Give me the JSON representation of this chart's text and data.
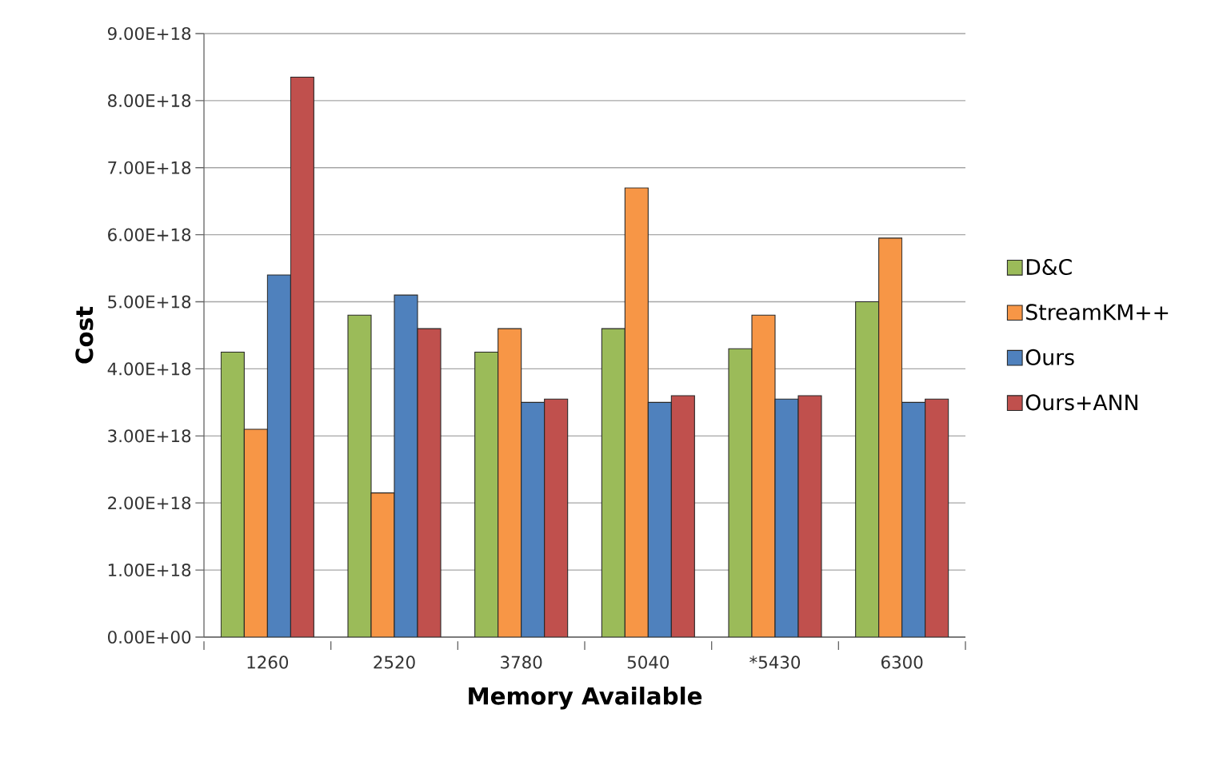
{
  "chart_data": {
    "type": "bar",
    "xlabel": "Memory Available",
    "ylabel": "Cost",
    "categories": [
      "1260",
      "2520",
      "3780",
      "5040",
      "*5430",
      "6300"
    ],
    "series": [
      {
        "name": "D&C",
        "color": "#9bbb59",
        "values": [
          4.25e+18,
          4.8e+18,
          4.25e+18,
          4.6e+18,
          4.3e+18,
          5e+18
        ]
      },
      {
        "name": "StreamKM++",
        "color": "#f79646",
        "values": [
          3.1e+18,
          2.15e+18,
          4.6e+18,
          6.7e+18,
          4.8e+18,
          5.95e+18
        ]
      },
      {
        "name": "Ours",
        "color": "#4f81bd",
        "values": [
          5.4e+18,
          5.1e+18,
          3.5e+18,
          3.5e+18,
          3.55e+18,
          3.5e+18
        ]
      },
      {
        "name": "Ours+ANN",
        "color": "#c0504d",
        "values": [
          8.35e+18,
          4.6e+18,
          3.55e+18,
          3.6e+18,
          3.6e+18,
          3.55e+18
        ]
      }
    ],
    "ylim": [
      0,
      9e+18
    ],
    "yticks": [
      {
        "value": 0,
        "label": "0.00E+00"
      },
      {
        "value": 1e+18,
        "label": "1.00E+18"
      },
      {
        "value": 2e+18,
        "label": "2.00E+18"
      },
      {
        "value": 3e+18,
        "label": "3.00E+18"
      },
      {
        "value": 4e+18,
        "label": "4.00E+18"
      },
      {
        "value": 5e+18,
        "label": "5.00E+18"
      },
      {
        "value": 6e+18,
        "label": "6.00E+18"
      },
      {
        "value": 7e+18,
        "label": "7.00E+18"
      },
      {
        "value": 8e+18,
        "label": "8.00E+18"
      },
      {
        "value": 9e+18,
        "label": "9.00E+18"
      }
    ],
    "grid": "y",
    "legend": "right"
  }
}
